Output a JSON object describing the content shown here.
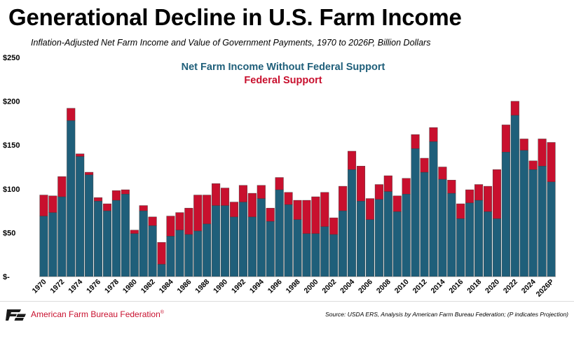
{
  "chart_data": {
    "type": "bar",
    "stacked": true,
    "title": "Generational Decline in U.S. Farm Income",
    "subtitle": "Inflation-Adjusted Net Farm Income and Value of Government Payments, 1970 to 2026P, Billion Dollars",
    "xlabel": "",
    "ylabel": "",
    "ylim": [
      0,
      250
    ],
    "y_ticks": [
      0,
      50,
      100,
      150,
      200,
      250
    ],
    "y_tick_labels": [
      "$-",
      "$50",
      "$100",
      "$150",
      "$200",
      "$250"
    ],
    "categories": [
      "1970",
      "1971",
      "1972",
      "1973",
      "1974",
      "1975",
      "1976",
      "1977",
      "1978",
      "1979",
      "1980",
      "1981",
      "1982",
      "1983",
      "1984",
      "1985",
      "1986",
      "1987",
      "1988",
      "1989",
      "1990",
      "1991",
      "1992",
      "1993",
      "1994",
      "1995",
      "1996",
      "1997",
      "1998",
      "1999",
      "2000",
      "2001",
      "2002",
      "2003",
      "2004",
      "2005",
      "2006",
      "2007",
      "2008",
      "2009",
      "2010",
      "2011",
      "2012",
      "2013",
      "2014",
      "2015",
      "2016",
      "2017",
      "2018",
      "2019",
      "2020",
      "2021",
      "2022",
      "2023",
      "2024",
      "2025",
      "2026P"
    ],
    "x_tick_labels": [
      "1970",
      "1972",
      "1974",
      "1976",
      "1978",
      "1980",
      "1982",
      "1984",
      "1986",
      "1988",
      "1990",
      "1992",
      "1994",
      "1996",
      "1998",
      "2000",
      "2002",
      "2004",
      "2006",
      "2008",
      "2010",
      "2012",
      "2014",
      "2016",
      "2018",
      "2020",
      "2022",
      "2024",
      "2026P"
    ],
    "series": [
      {
        "name": "Net Farm Income Without Federal Support",
        "color": "#1f5f7a",
        "values": [
          69,
          73,
          91,
          178,
          137,
          116,
          86,
          75,
          87,
          94,
          49,
          75,
          58,
          14,
          46,
          53,
          48,
          52,
          60,
          81,
          81,
          68,
          85,
          68,
          89,
          63,
          99,
          82,
          65,
          49,
          49,
          57,
          48,
          75,
          122,
          86,
          65,
          88,
          97,
          74,
          94,
          146,
          119,
          154,
          111,
          95,
          66,
          84,
          87,
          74,
          66,
          142,
          184,
          144,
          122,
          126,
          108
        ]
      },
      {
        "name": "Federal Support",
        "color": "#c8102e",
        "values": [
          24,
          19,
          23,
          14,
          3,
          3,
          4,
          8,
          11,
          5,
          4,
          6,
          10,
          25,
          23,
          20,
          30,
          41,
          33,
          25,
          20,
          17,
          19,
          27,
          15,
          15,
          14,
          14,
          22,
          38,
          42,
          39,
          19,
          28,
          21,
          40,
          24,
          17,
          18,
          18,
          18,
          16,
          16,
          16,
          14,
          15,
          17,
          15,
          18,
          29,
          56,
          31,
          16,
          13,
          10,
          31,
          45
        ]
      }
    ]
  },
  "footer": {
    "organization": "American Farm Bureau Federation",
    "registered_mark": "®",
    "source": "Source: USDA ERS, Analysis by American Farm Bureau Federation; (P indicates Projection)"
  }
}
